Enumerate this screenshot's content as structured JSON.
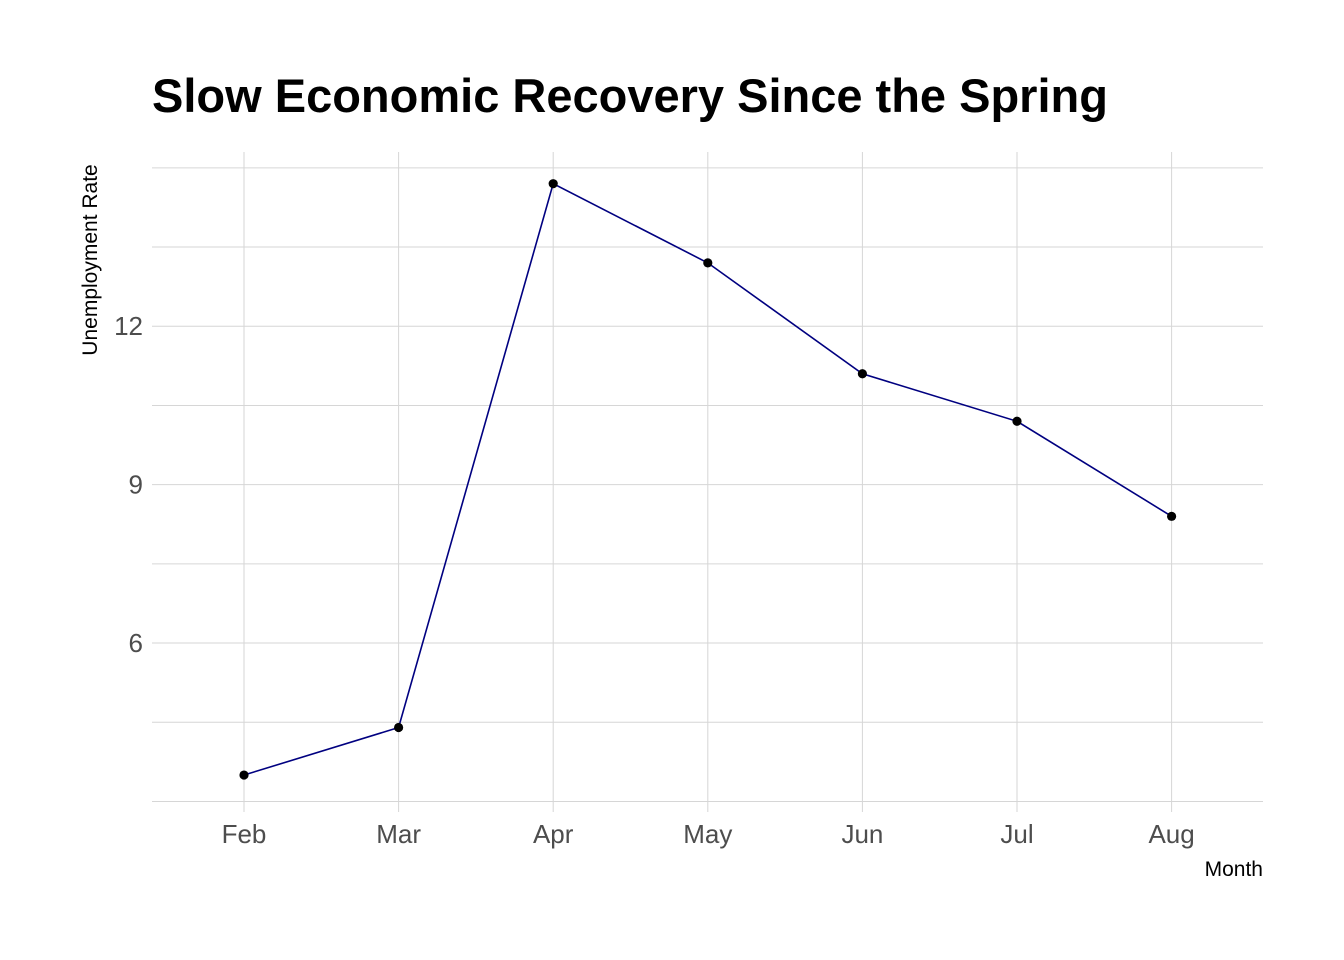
{
  "chart_data": {
    "type": "line",
    "title": "Slow Economic Recovery Since the Spring",
    "xlabel": "Month",
    "ylabel": "Unemployment Rate",
    "categories": [
      "Feb",
      "Mar",
      "Apr",
      "May",
      "Jun",
      "Jul",
      "Aug"
    ],
    "series": [
      {
        "values": [
          3.5,
          4.4,
          14.7,
          13.2,
          11.1,
          10.2,
          8.4
        ]
      }
    ],
    "y_ticks": [
      6,
      9,
      12
    ],
    "ylim": [
      2.8,
      15.3
    ],
    "grid": true,
    "legend": "none",
    "colors": {
      "line": "#000080",
      "points": "#000000",
      "grid": "#d6d6d6"
    }
  }
}
